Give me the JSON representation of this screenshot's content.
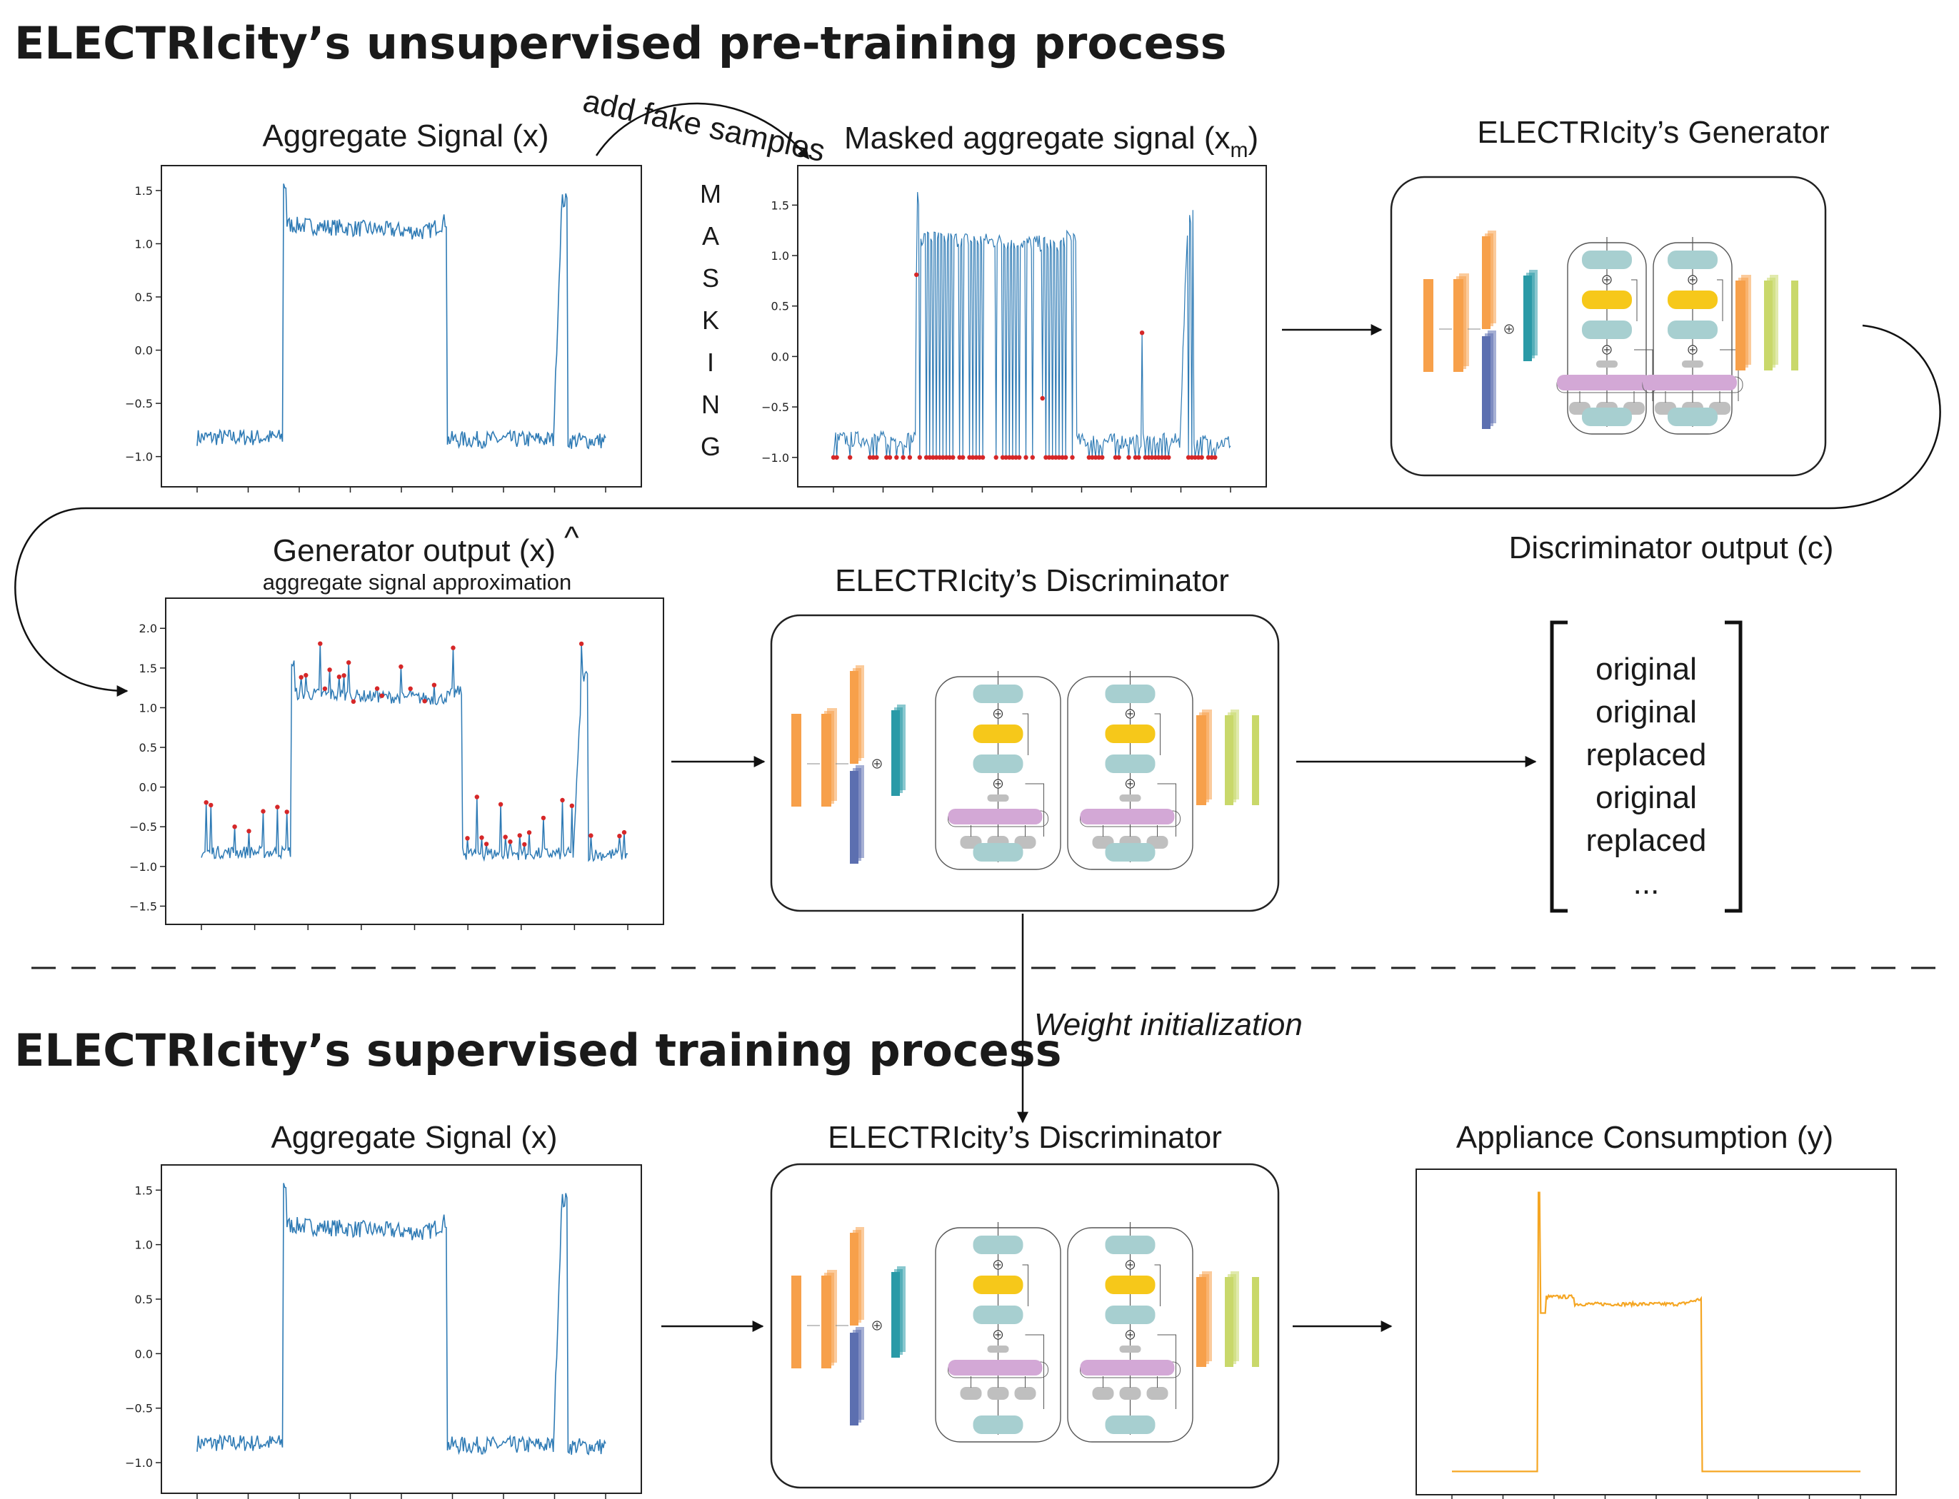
{
  "headings": {
    "pretraining": "ELECTRIcity’s unsupervised pre-training process",
    "supervised": "ELECTRIcity’s supervised training process"
  },
  "labels": {
    "aggregate_signal_top": "Aggregate Signal (x)",
    "add_fake_samples": "add fake samples",
    "masking_letters": [
      "M",
      "A",
      "S",
      "K",
      "I",
      "N",
      "G"
    ],
    "masked_signal": "Masked aggregate signal (x",
    "masked_signal_sub": "m",
    "masked_signal_end": ")",
    "generator": "ELECTRIcity’s Generator",
    "generator_output": "Generator output (x)",
    "generator_output_hat": "^",
    "generator_output_sub": "aggregate signal approximation",
    "discriminator_top": "ELECTRIcity’s Discriminator",
    "discriminator_output": "Discriminator output (c)",
    "weight_init": "Weight initialization",
    "aggregate_signal_bottom": "Aggregate Signal (x)",
    "discriminator_bottom": "ELECTRIcity’s Discriminator",
    "appliance_consumption": "Appliance Consumption (y)"
  },
  "discriminator_output_items": [
    "original",
    "original",
    "replaced",
    "original",
    "replaced",
    "..."
  ],
  "plot_ticks": {
    "aggregate": [
      "1.5",
      "1.0",
      "0.5",
      "0.0",
      "−0.5",
      "−1.0"
    ],
    "masked": [
      "1.5",
      "1.0",
      "0.5",
      "0.0",
      "−0.5",
      "−1.0"
    ],
    "generator": [
      "2.0",
      "1.5",
      "1.0",
      "0.5",
      "0.0",
      "−0.5",
      "−1.0",
      "−1.5"
    ]
  },
  "colors": {
    "signal": "#2f7bb5",
    "marker": "#d62728",
    "appliance": "#f5a623",
    "orange_block": "#f7a04a",
    "blue_block": "#5c6fb0",
    "teal_block": "#2a9aa7",
    "lime_block": "#c9d86a",
    "teal_pill": "#a7cfd0",
    "yellow_pill": "#f6c81a",
    "purple_pill": "#d3a8d6",
    "gray_pill": "#bfbfbf"
  },
  "icons": {
    "model_box": "transformer-architecture-icon",
    "arrow": "arrow-right-icon",
    "bracket": "matrix-bracket-icon"
  }
}
